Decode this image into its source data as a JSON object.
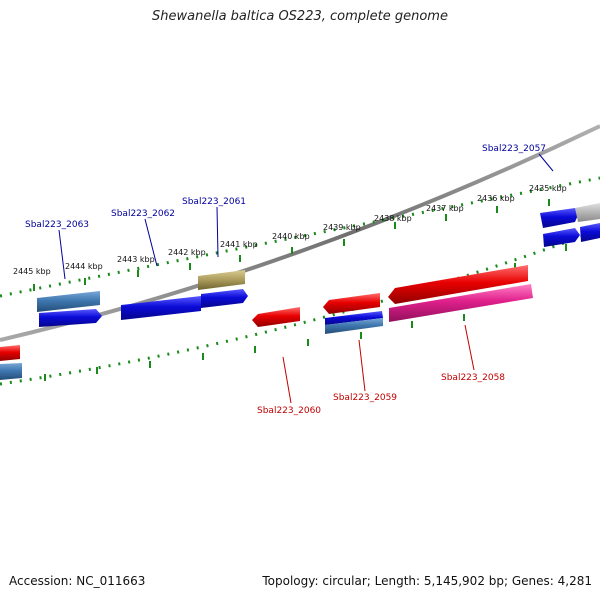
{
  "header": {
    "title": "Shewanella baltica OS223, complete genome"
  },
  "footer": {
    "accession": "Accession: NC_011663",
    "stats": "Topology: circular; Length: 5,145,902 bp; Genes: 4,281"
  },
  "scale": {
    "ticks": [
      "2435 kbp",
      "2436 kbp",
      "2437 kbp",
      "2438 kbp",
      "2439 kbp",
      "2440 kbp",
      "2441 kbp",
      "2442 kbp",
      "2443 kbp",
      "2444 kbp",
      "2445 kbp"
    ]
  },
  "genes": {
    "forward_labels": [
      "Sbal223_2057",
      "Sbal223_2061",
      "Sbal223_2062",
      "Sbal223_2063"
    ],
    "reverse_labels": [
      "Sbal223_2058",
      "Sbal223_2059",
      "Sbal223_2060"
    ]
  },
  "colors": {
    "forward_gene": "#0a0ad8",
    "reverse_gene": "#e80000",
    "steelblue_gene": "#3f78b0",
    "olive_gene": "#b0a060",
    "magenta_gene": "#e0208c",
    "grey_gene": "#b8b8b8",
    "backbone": "#808080",
    "tick": "#1a8a1a"
  }
}
